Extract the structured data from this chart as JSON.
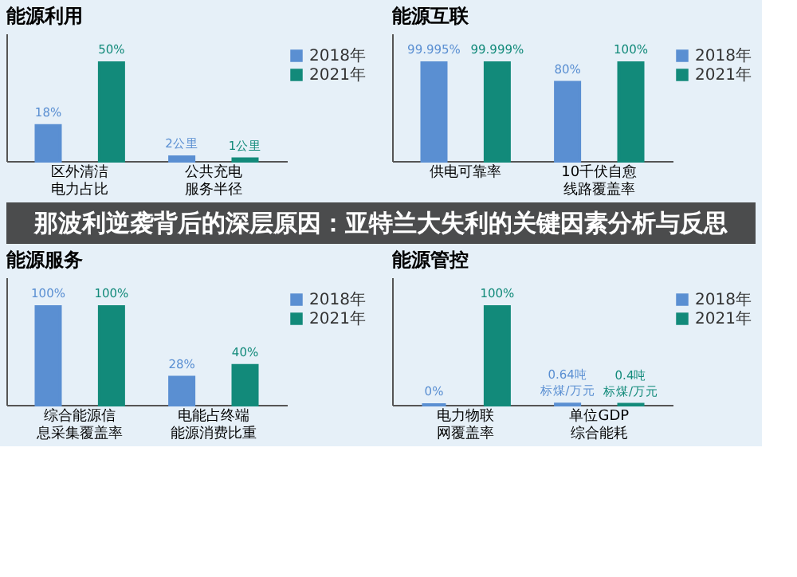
{
  "chart_data": [
    {
      "type": "bar",
      "title": "能源利用",
      "legend": "top right",
      "categories": [
        "区外清洁电力占比",
        "公共充电服务半径"
      ],
      "annotations": [
        "那波利逆袭背后的深层原因：亚特兰大失利的关键因素分析与反思"
      ],
      "series": [
        {
          "name": "2018年",
          "color": "#5a8fd2",
          "values": [
            18,
            2
          ],
          "value_labels": [
            "18%",
            "2公里"
          ]
        },
        {
          "name": "2021年",
          "color": "#128a7a",
          "values": [
            50,
            1
          ],
          "value_labels": [
            "50%",
            "1公里"
          ]
        }
      ]
    },
    {
      "type": "bar",
      "title": "能源互联",
      "legend": "top right",
      "categories": [
        "供电可靠率",
        "10千伏自愈线路覆盖率"
      ],
      "series": [
        {
          "name": "2018年",
          "color": "#5a8fd2",
          "values": [
            99.995,
            80
          ],
          "value_labels": [
            "99.995%",
            "80%"
          ]
        },
        {
          "name": "2021年",
          "color": "#128a7a",
          "values": [
            99.999,
            100
          ],
          "value_labels": [
            "99.999%",
            "100%"
          ]
        }
      ]
    },
    {
      "type": "bar",
      "title": "能源服务",
      "legend": "top right",
      "categories": [
        "综合能源信息采集覆盖率",
        "电能占终端能源消费比重"
      ],
      "series": [
        {
          "name": "2018年",
          "color": "#5a8fd2",
          "values": [
            100,
            28
          ],
          "value_labels": [
            "100%",
            "28%"
          ]
        },
        {
          "name": "2021年",
          "color": "#128a7a",
          "values": [
            100,
            40
          ],
          "value_labels": [
            "100%",
            "40%"
          ]
        }
      ]
    },
    {
      "type": "bar",
      "title": "能源管控",
      "legend": "top right",
      "categories": [
        "电力物联网覆盖率",
        "单位GDP综合能耗"
      ],
      "series": [
        {
          "name": "2018年",
          "color": "#5a8fd2",
          "values": [
            0,
            0.64
          ],
          "value_labels": [
            "0%",
            "0.64吨标煤/万元"
          ]
        },
        {
          "name": "2021年",
          "color": "#128a7a",
          "values": [
            100,
            0.4
          ],
          "value_labels": [
            "100%",
            "0.4吨标煤/万元"
          ]
        }
      ]
    }
  ]
}
